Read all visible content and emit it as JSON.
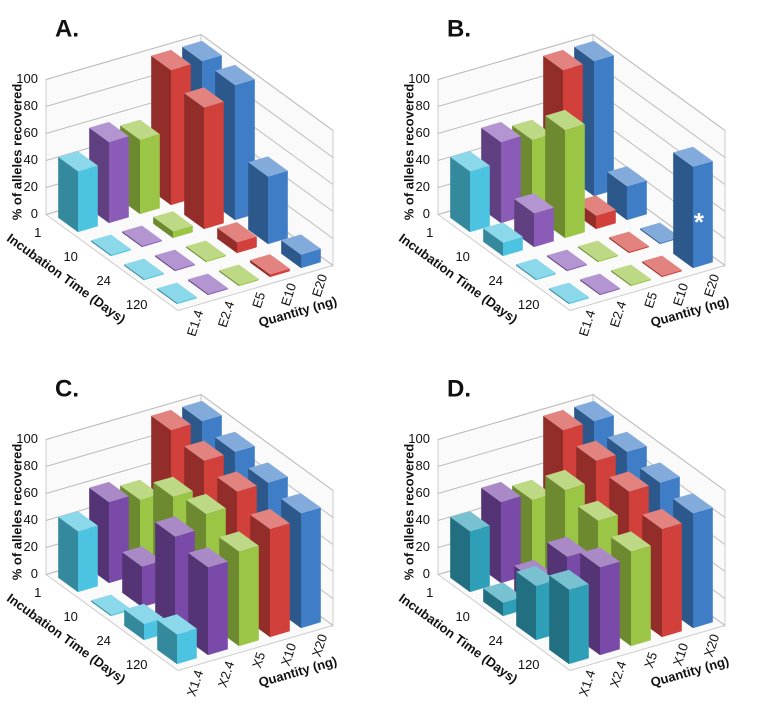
{
  "chart_data": [
    {
      "type": "bar3d",
      "title": "A.",
      "ylabel": "% of alleles recovered",
      "xlabel": "Incubation Time (Days)",
      "zlabel": "Quantity (ng)",
      "categories": [
        "1",
        "10",
        "24",
        "120"
      ],
      "ylim": [
        0,
        100
      ],
      "yticks": [
        0,
        20,
        40,
        60,
        80,
        100
      ],
      "series": [
        {
          "name": "E1.4",
          "color": "#4cc3e0",
          "values": [
            45,
            1,
            1,
            1
          ]
        },
        {
          "name": "E2.4",
          "color": "#8a5cb8",
          "values": [
            60,
            1,
            1,
            1
          ]
        },
        {
          "name": "E5",
          "color": "#9bc544",
          "values": [
            55,
            5,
            1,
            1
          ]
        },
        {
          "name": "E10",
          "color": "#d2403c",
          "values": [
            100,
            90,
            8,
            2
          ]
        },
        {
          "name": "E20",
          "color": "#3f7dc7",
          "values": [
            100,
            100,
            50,
            10
          ]
        }
      ]
    },
    {
      "type": "bar3d",
      "title": "B.",
      "ylabel": "% of alleles recovered",
      "xlabel": "Incubation Time (Days)",
      "zlabel": "Quantity (ng)",
      "categories": [
        "1",
        "10",
        "24",
        "120"
      ],
      "ylim": [
        0,
        100
      ],
      "yticks": [
        0,
        20,
        40,
        60,
        80,
        100
      ],
      "annotations": [
        {
          "text": "*"
        }
      ],
      "series": [
        {
          "name": "E1.4",
          "color": "#4cc3e0",
          "values": [
            45,
            10,
            1,
            1
          ]
        },
        {
          "name": "E2.4",
          "color": "#8a5cb8",
          "values": [
            60,
            25,
            1,
            1
          ]
        },
        {
          "name": "E5",
          "color": "#9bc544",
          "values": [
            55,
            80,
            1,
            1
          ]
        },
        {
          "name": "E10",
          "color": "#d2403c",
          "values": [
            100,
            10,
            1,
            1
          ]
        },
        {
          "name": "E20",
          "color": "#3f7dc7",
          "values": [
            100,
            25,
            1,
            75
          ]
        }
      ]
    },
    {
      "type": "bar3d",
      "title": "C.",
      "ylabel": "% of alleles recovered",
      "xlabel": "Incubation Time (Days)",
      "zlabel": "Quantity (ng)",
      "categories": [
        "1",
        "10",
        "24",
        "120"
      ],
      "ylim": [
        0,
        100
      ],
      "yticks": [
        0,
        20,
        40,
        60,
        80,
        100
      ],
      "series": [
        {
          "name": "X1.4",
          "color": "#4cc3e0",
          "values": [
            45,
            1,
            12,
            22
          ]
        },
        {
          "name": "X2.4",
          "color": "#7a4aa8",
          "values": [
            60,
            30,
            70,
            65
          ]
        },
        {
          "name": "X5",
          "color": "#9bc544",
          "values": [
            55,
            75,
            80,
            70
          ]
        },
        {
          "name": "X10",
          "color": "#d2403c",
          "values": [
            100,
            95,
            90,
            80
          ]
        },
        {
          "name": "X20",
          "color": "#3f7dc7",
          "values": [
            100,
            95,
            90,
            85
          ]
        }
      ]
    },
    {
      "type": "bar3d",
      "title": "D.",
      "ylabel": "% of alleles recovered",
      "xlabel": "Incubation Time (Days)",
      "zlabel": "Quantity (ng)",
      "categories": [
        "1",
        "10",
        "24",
        "120"
      ],
      "ylim": [
        0,
        100
      ],
      "yticks": [
        0,
        20,
        40,
        60,
        80,
        100
      ],
      "series": [
        {
          "name": "X1.4",
          "color": "#2f9fb8",
          "values": [
            45,
            10,
            40,
            55
          ]
        },
        {
          "name": "X2.4",
          "color": "#7a4aa8",
          "values": [
            60,
            20,
            55,
            65
          ]
        },
        {
          "name": "X5",
          "color": "#9bc544",
          "values": [
            55,
            80,
            75,
            70
          ]
        },
        {
          "name": "X10",
          "color": "#d2403c",
          "values": [
            100,
            95,
            90,
            80
          ]
        },
        {
          "name": "X20",
          "color": "#3f7dc7",
          "values": [
            100,
            95,
            90,
            85
          ]
        }
      ]
    }
  ]
}
